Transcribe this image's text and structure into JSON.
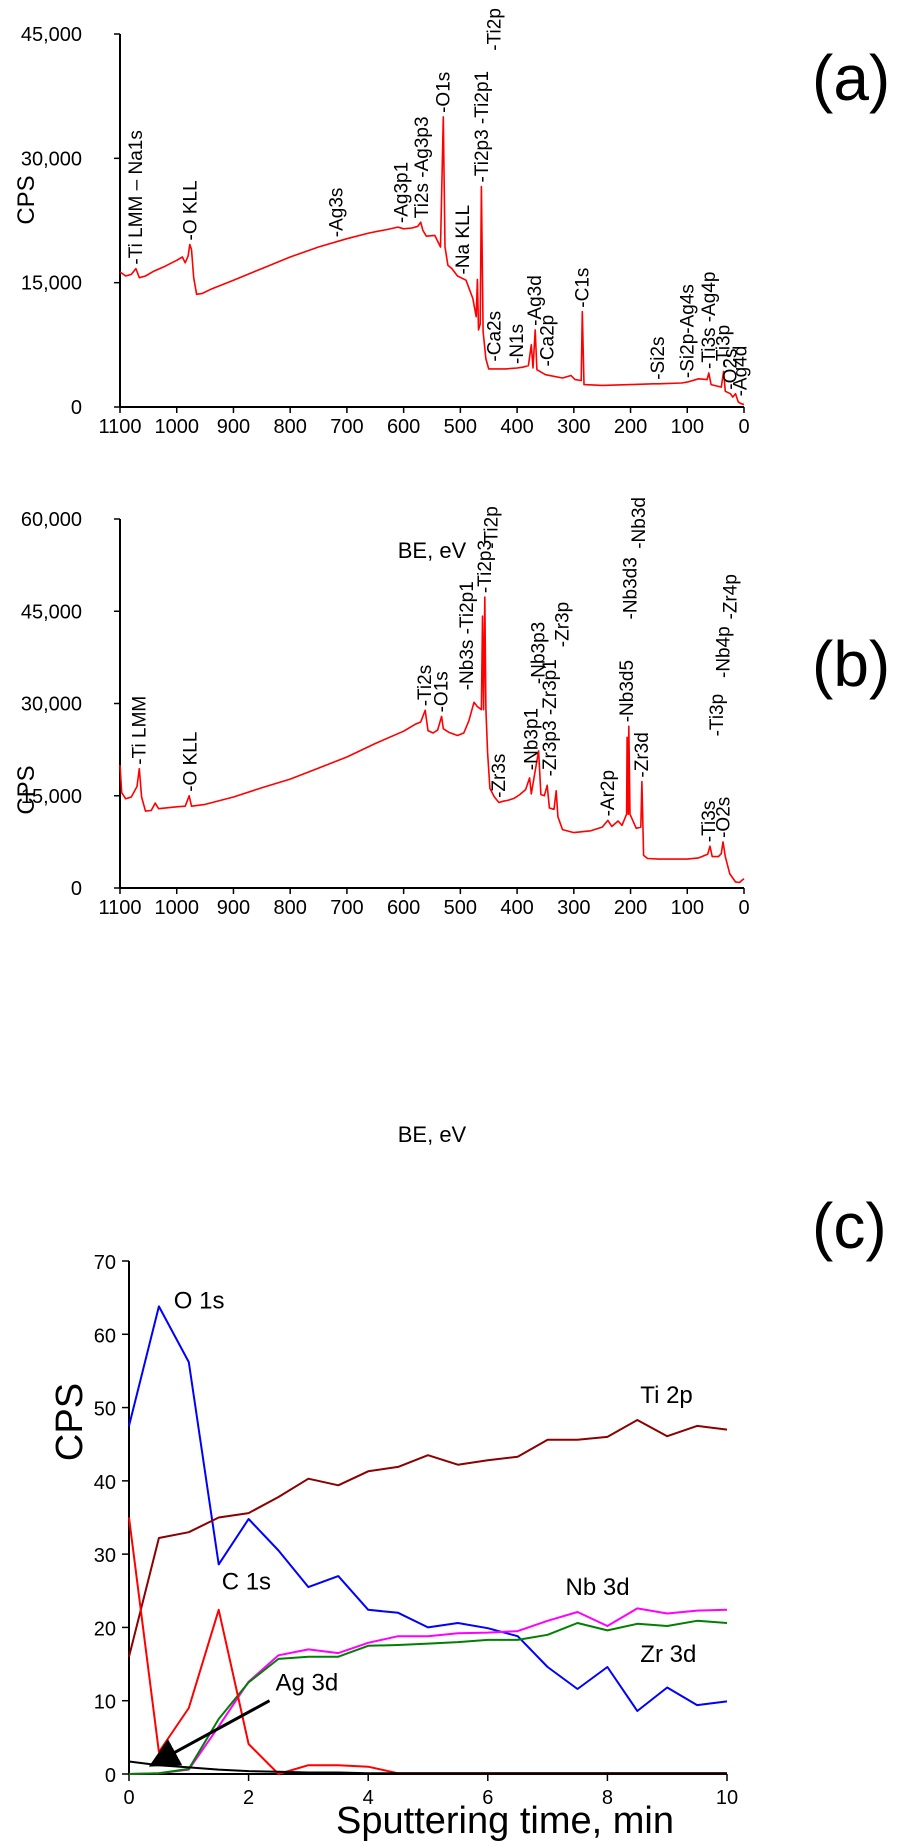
{
  "chart_data": [
    {
      "panel": "(a)",
      "type": "line",
      "xlabel": "BE, eV",
      "ylabel": "CPS",
      "xlim": [
        1100,
        0
      ],
      "ylim": [
        0,
        45000
      ],
      "x_ticks": [
        "1100",
        "1000",
        "900",
        "800",
        "700",
        "600",
        "500",
        "400",
        "300",
        "200",
        "100",
        "0"
      ],
      "y_ticks": [
        "0",
        "15,000",
        "30,000",
        "45,000"
      ],
      "line_color": "#ff0000",
      "spectrum": [
        [
          1100,
          16300
        ],
        [
          1090,
          15800
        ],
        [
          1080,
          16000
        ],
        [
          1072,
          16700
        ],
        [
          1066,
          15600
        ],
        [
          1055,
          15800
        ],
        [
          1040,
          16400
        ],
        [
          1020,
          17000
        ],
        [
          1000,
          17700
        ],
        [
          990,
          18100
        ],
        [
          985,
          17400
        ],
        [
          980,
          18200
        ],
        [
          977,
          19600
        ],
        [
          974,
          19000
        ],
        [
          970,
          15600
        ],
        [
          965,
          13600
        ],
        [
          955,
          13700
        ],
        [
          940,
          14200
        ],
        [
          900,
          15300
        ],
        [
          850,
          16700
        ],
        [
          800,
          18100
        ],
        [
          750,
          19300
        ],
        [
          700,
          20300
        ],
        [
          660,
          21000
        ],
        [
          630,
          21400
        ],
        [
          610,
          21700
        ],
        [
          600,
          21500
        ],
        [
          585,
          21600
        ],
        [
          575,
          21800
        ],
        [
          570,
          22300
        ],
        [
          566,
          21300
        ],
        [
          560,
          20600
        ],
        [
          545,
          20700
        ],
        [
          535,
          19300
        ],
        [
          530,
          35000
        ],
        [
          527,
          19300
        ],
        [
          522,
          17100
        ],
        [
          515,
          16700
        ],
        [
          505,
          15800
        ],
        [
          490,
          15300
        ],
        [
          478,
          13100
        ],
        [
          472,
          10900
        ],
        [
          470,
          15400
        ],
        [
          468,
          9300
        ],
        [
          465,
          10000
        ],
        [
          463,
          26600
        ],
        [
          460,
          9100
        ],
        [
          455,
          5800
        ],
        [
          450,
          4600
        ],
        [
          420,
          4600
        ],
        [
          400,
          4700
        ],
        [
          390,
          4800
        ],
        [
          380,
          5000
        ],
        [
          375,
          7500
        ],
        [
          372,
          4700
        ],
        [
          368,
          9300
        ],
        [
          365,
          4500
        ],
        [
          350,
          3900
        ],
        [
          320,
          3500
        ],
        [
          305,
          3800
        ],
        [
          298,
          3300
        ],
        [
          287,
          3200
        ],
        [
          285,
          11500
        ],
        [
          282,
          2700
        ],
        [
          250,
          2600
        ],
        [
          200,
          2700
        ],
        [
          160,
          2800
        ],
        [
          150,
          2800
        ],
        [
          110,
          2900
        ],
        [
          100,
          3000
        ],
        [
          80,
          3400
        ],
        [
          65,
          3300
        ],
        [
          62,
          4100
        ],
        [
          58,
          2700
        ],
        [
          40,
          2400
        ],
        [
          36,
          4300
        ],
        [
          33,
          1900
        ],
        [
          24,
          1600
        ],
        [
          20,
          1200
        ],
        [
          15,
          1600
        ],
        [
          10,
          600
        ],
        [
          5,
          400
        ],
        [
          0,
          300
        ]
      ],
      "peak_labels": [
        {
          "text": "-Ti LMM – Na1s",
          "be": 1072,
          "cps": 16700
        },
        {
          "text": "-O KLL",
          "be": 976,
          "cps": 19600
        },
        {
          "text": "-Ag3s",
          "be": 718,
          "cps": 20000
        },
        {
          "text": "-Ag3p1",
          "be": 604,
          "cps": 21700
        },
        {
          "text": "Ti2s -Ag3p3",
          "be": 568,
          "cps": 22300
        },
        {
          "text": "-O1s",
          "be": 530,
          "cps": 35000
        },
        {
          "text": "-Na KLL",
          "be": 495,
          "cps": 15500
        },
        {
          "text": "-Ti2p3 -Ti2p1",
          "be": 462,
          "cps": 26600
        },
        {
          "text": "-Ti2p",
          "be": 440,
          "cps": 42500
        },
        {
          "text": "-Ca2s",
          "be": 440,
          "cps": 5000
        },
        {
          "text": "-N1s",
          "be": 400,
          "cps": 4700
        },
        {
          "text": "-Ag3d",
          "be": 368,
          "cps": 9300
        },
        {
          "text": "-Ca2p",
          "be": 346,
          "cps": 4400
        },
        {
          "text": "-C1s",
          "be": 285,
          "cps": 11500
        },
        {
          "text": "-Si2s",
          "be": 152,
          "cps": 2800
        },
        {
          "text": "-Si2p-Ag4s",
          "be": 100,
          "cps": 3000
        },
        {
          "text": "-Ti3s -Ag4p",
          "be": 62,
          "cps": 4100
        },
        {
          "text": "-Ti3p",
          "be": 36,
          "cps": 4300
        },
        {
          "text": "-O2s",
          "be": 24,
          "cps": 1600
        },
        {
          "text": "-Ag4d",
          "be": 6,
          "cps": 800
        }
      ]
    },
    {
      "panel": "(b)",
      "type": "line",
      "xlabel": "BE, eV",
      "ylabel": "CPS",
      "xlim": [
        1100,
        0
      ],
      "ylim": [
        0,
        60000
      ],
      "x_ticks": [
        "1100",
        "1000",
        "900",
        "800",
        "700",
        "600",
        "500",
        "400",
        "300",
        "200",
        "100",
        "0"
      ],
      "y_ticks": [
        "0",
        "15,000",
        "30,000",
        "45,000",
        "60,000"
      ],
      "line_color": "#ff0000",
      "spectrum": [
        [
          1100,
          20000
        ],
        [
          1097,
          15500
        ],
        [
          1090,
          14500
        ],
        [
          1080,
          14800
        ],
        [
          1070,
          16500
        ],
        [
          1066,
          19400
        ],
        [
          1062,
          14800
        ],
        [
          1055,
          12500
        ],
        [
          1045,
          12600
        ],
        [
          1038,
          13800
        ],
        [
          1032,
          12900
        ],
        [
          1000,
          13200
        ],
        [
          985,
          13300
        ],
        [
          978,
          15000
        ],
        [
          974,
          13300
        ],
        [
          950,
          13600
        ],
        [
          900,
          14800
        ],
        [
          850,
          16300
        ],
        [
          800,
          17700
        ],
        [
          750,
          19500
        ],
        [
          700,
          21300
        ],
        [
          650,
          23500
        ],
        [
          600,
          25500
        ],
        [
          580,
          26600
        ],
        [
          570,
          27000
        ],
        [
          562,
          28900
        ],
        [
          557,
          25600
        ],
        [
          548,
          25200
        ],
        [
          540,
          25700
        ],
        [
          533,
          27900
        ],
        [
          530,
          25900
        ],
        [
          520,
          25300
        ],
        [
          505,
          24800
        ],
        [
          494,
          25200
        ],
        [
          485,
          27200
        ],
        [
          476,
          30200
        ],
        [
          470,
          29500
        ],
        [
          463,
          29000
        ],
        [
          461,
          44200
        ],
        [
          459,
          29000
        ],
        [
          457,
          47300
        ],
        [
          455,
          29100
        ],
        [
          452,
          22000
        ],
        [
          448,
          16200
        ],
        [
          440,
          14800
        ],
        [
          432,
          13900
        ],
        [
          425,
          14100
        ],
        [
          415,
          14300
        ],
        [
          405,
          14600
        ],
        [
          395,
          15200
        ],
        [
          385,
          16000
        ],
        [
          378,
          17900
        ],
        [
          375,
          15300
        ],
        [
          370,
          18000
        ],
        [
          362,
          22300
        ],
        [
          358,
          15200
        ],
        [
          352,
          15000
        ],
        [
          347,
          16700
        ],
        [
          343,
          13000
        ],
        [
          335,
          12800
        ],
        [
          331,
          15800
        ],
        [
          328,
          11600
        ],
        [
          320,
          9500
        ],
        [
          300,
          9000
        ],
        [
          270,
          9300
        ],
        [
          250,
          9900
        ],
        [
          240,
          11000
        ],
        [
          233,
          10000
        ],
        [
          222,
          10900
        ],
        [
          215,
          10200
        ],
        [
          207,
          12000
        ],
        [
          206,
          24500
        ],
        [
          204,
          12000
        ],
        [
          203,
          26300
        ],
        [
          201,
          12000
        ],
        [
          190,
          9700
        ],
        [
          182,
          9900
        ],
        [
          180,
          17300
        ],
        [
          177,
          5300
        ],
        [
          170,
          4800
        ],
        [
          150,
          4700
        ],
        [
          100,
          4700
        ],
        [
          80,
          4900
        ],
        [
          64,
          5500
        ],
        [
          60,
          6800
        ],
        [
          56,
          5100
        ],
        [
          45,
          5100
        ],
        [
          40,
          5600
        ],
        [
          37,
          7500
        ],
        [
          33,
          5100
        ],
        [
          25,
          2300
        ],
        [
          15,
          1000
        ],
        [
          8,
          900
        ],
        [
          3,
          1300
        ],
        [
          0,
          1500
        ]
      ],
      "peak_labels": [
        {
          "text": "-Ti LMM",
          "be": 1066,
          "cps": 19400
        },
        {
          "text": "-O KLL",
          "be": 976,
          "cps": 15000
        },
        {
          "text": "-Ti2s",
          "be": 562,
          "cps": 28900
        },
        {
          "text": "-O1s",
          "be": 533,
          "cps": 27900
        },
        {
          "text": "-Nb3s -Ti2p1",
          "be": 488,
          "cps": 31500
        },
        {
          "text": "-Ti2p3",
          "be": 457,
          "cps": 47300
        },
        {
          "text": "-Ti2p",
          "be": 445,
          "cps": 54500
        },
        {
          "text": "-Zr3s",
          "be": 432,
          "cps": 14000
        },
        {
          "text": "-Nb3p1",
          "be": 375,
          "cps": 18500
        },
        {
          "text": "-Nb3p3",
          "be": 362,
          "cps": 32500
        },
        {
          "text": "-Zr3p3 -Zr3p1",
          "be": 342,
          "cps": 17500
        },
        {
          "text": "-Zr3p",
          "be": 320,
          "cps": 38500
        },
        {
          "text": "-Ar2p",
          "be": 240,
          "cps": 11000
        },
        {
          "text": "-Nb3d5",
          "be": 206,
          "cps": 26300
        },
        {
          "text": "-Nb3d3",
          "be": 200,
          "cps": 43000
        },
        {
          "text": "-Nb3d",
          "be": 185,
          "cps": 54500
        },
        {
          "text": "-Zr3d",
          "be": 180,
          "cps": 17300
        },
        {
          "text": "-Ti3s",
          "be": 62,
          "cps": 6800
        },
        {
          "text": "-Ti3p",
          "be": 48,
          "cps": 24000
        },
        {
          "text": "-Nb4p",
          "be": 36,
          "cps": 33500
        },
        {
          "text": "-Zr4p",
          "be": 24,
          "cps": 43000
        },
        {
          "text": "-O2s",
          "be": 36,
          "cps": 7500
        }
      ]
    },
    {
      "panel": "(c)",
      "type": "line",
      "xlabel": "Sputtering time, min",
      "ylabel": "CPS",
      "xlim": [
        0,
        10
      ],
      "ylim": [
        0,
        70
      ],
      "x_ticks": [
        "0",
        "2",
        "4",
        "6",
        "8",
        "10"
      ],
      "y_ticks": [
        "0",
        "10",
        "20",
        "30",
        "40",
        "50",
        "60",
        "70"
      ],
      "x": [
        0,
        0.5,
        1,
        1.5,
        2,
        2.5,
        3,
        3.5,
        4,
        4.5,
        5,
        5.5,
        6,
        6.5,
        7,
        7.5,
        8,
        8.5,
        9,
        9.5,
        10
      ],
      "series": [
        {
          "name": "O 1s",
          "color": "#0000ff",
          "values": [
            47.5,
            63.8,
            56.2,
            28.6,
            34.8,
            30.5,
            25.5,
            27.0,
            22.4,
            22.0,
            20.0,
            20.6,
            19.9,
            18.8,
            14.6,
            11.6,
            14.6,
            8.6,
            11.8,
            9.4,
            9.9
          ]
        },
        {
          "name": "Ti 2p",
          "color": "#8b0000",
          "values": [
            16.0,
            32.2,
            33.0,
            35.0,
            35.6,
            37.8,
            40.3,
            39.4,
            41.3,
            41.9,
            43.5,
            42.2,
            42.8,
            43.3,
            45.6,
            45.6,
            46.0,
            48.3,
            46.1,
            47.5,
            47.0
          ]
        },
        {
          "name": "Nb 3d",
          "color": "#ff00ff",
          "values": [
            0.0,
            0.1,
            0.6,
            6.5,
            12.6,
            16.2,
            17.0,
            16.5,
            17.9,
            18.8,
            18.8,
            19.2,
            19.3,
            19.5,
            20.9,
            22.1,
            20.2,
            22.6,
            21.9,
            22.3,
            22.4
          ]
        },
        {
          "name": "Zr 3d",
          "color": "#008000",
          "values": [
            0.0,
            0.1,
            0.7,
            7.5,
            12.5,
            15.7,
            16.0,
            16.0,
            17.5,
            17.6,
            17.8,
            18.0,
            18.3,
            18.3,
            19.0,
            20.6,
            19.6,
            20.5,
            20.2,
            20.9,
            20.6
          ]
        },
        {
          "name": "C 1s",
          "color": "#ff0000",
          "values": [
            35.0,
            3.0,
            9.0,
            22.4,
            4.1,
            0.0,
            1.2,
            1.2,
            1.0,
            0.1,
            0.1,
            0.1,
            0.1,
            0.1,
            0.1,
            0.1,
            0.1,
            0.1,
            0.1,
            0.1,
            0.1
          ]
        },
        {
          "name": "Ag 3d",
          "color": "#000000",
          "values": [
            1.7,
            1.2,
            0.9,
            0.6,
            0.4,
            0.3,
            0.2,
            0.2,
            0.1,
            0.1,
            0.1,
            0.1,
            0.1,
            0.1,
            0.1,
            0.1,
            0.1,
            0.1,
            0.1,
            0.1,
            0.1
          ]
        }
      ],
      "series_labels": [
        {
          "text": "O 1s",
          "x": 0.75,
          "y": 63.5
        },
        {
          "text": "Ti 2p",
          "x": 8.55,
          "y": 50.6
        },
        {
          "text": "C 1s",
          "x": 1.55,
          "y": 25.2
        },
        {
          "text": "Nb 3d",
          "x": 7.3,
          "y": 24.4
        },
        {
          "text": "Zr 3d",
          "x": 8.55,
          "y": 15.3
        },
        {
          "text": "Ag 3d",
          "x": 2.45,
          "y": 11.4
        }
      ],
      "arrow": {
        "label": "Ag 3d",
        "from": [
          2.35,
          10.0
        ],
        "to": [
          0.42,
          1.4
        ]
      }
    }
  ]
}
